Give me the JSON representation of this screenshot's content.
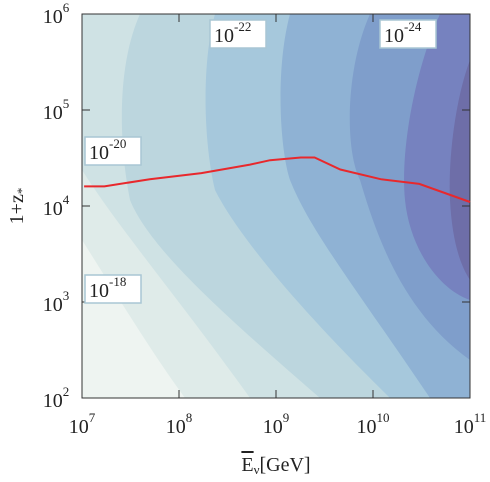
{
  "chart_data": {
    "type": "contour",
    "xlabel": "E",
    "xlabel_sub": "ν",
    "xlabel_unit": "[GeV]",
    "ylabel": "1+z",
    "ylabel_sub": "*",
    "xscale": "log",
    "yscale": "log",
    "xlim": [
      10000000,
      100000000000
    ],
    "ylim": [
      100,
      1000000
    ],
    "xticks": [
      {
        "value": 10000000,
        "label": "10",
        "power": "7"
      },
      {
        "value": 100000000,
        "label": "10",
        "power": "8"
      },
      {
        "value": 1000000000,
        "label": "10",
        "power": "9"
      },
      {
        "value": 10000000000,
        "label": "10",
        "power": "10"
      },
      {
        "value": 100000000000,
        "label": "10",
        "power": "11"
      }
    ],
    "yticks": [
      {
        "value": 100,
        "label": "10",
        "power": "2"
      },
      {
        "value": 1000,
        "label": "10",
        "power": "3"
      },
      {
        "value": 10000,
        "label": "10",
        "power": "4"
      },
      {
        "value": 100000,
        "label": "10",
        "power": "5"
      },
      {
        "value": 1000000,
        "label": "10",
        "power": "6"
      }
    ],
    "contour_labels": [
      {
        "label": "10",
        "power": "-22"
      },
      {
        "label": "10",
        "power": "-24"
      },
      {
        "label": "10",
        "power": "-20"
      },
      {
        "label": "10",
        "power": "-18"
      }
    ],
    "series": [
      {
        "color": "#e8282c",
        "x": [
          10500000,
          17000000,
          50000000,
          170000000,
          540000000,
          870000000,
          1800000000,
          2500000000,
          4600000000,
          12000000000,
          30000000000,
          100000000000
        ],
        "values": [
          16000,
          16000,
          19000,
          22000,
          27000,
          30000,
          32000,
          32000,
          24000,
          19000,
          17000,
          11000
        ]
      }
    ]
  }
}
